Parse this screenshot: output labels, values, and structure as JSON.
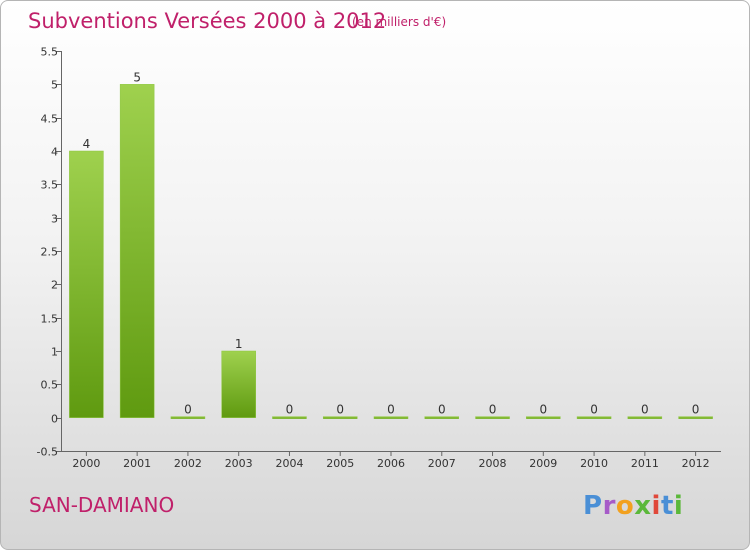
{
  "header": {
    "title": "Subventions Versées 2000 à 2012",
    "unit": "(en milliers d'€)"
  },
  "footer": {
    "commune": "SAN-DAMIANO",
    "logo_text": "Proxiti"
  },
  "colors": {
    "title": "#c0206a",
    "bar_top": "#9fd14e",
    "bar_bottom": "#5f9a10",
    "logo": [
      "#4a8fd6",
      "#f2a11f",
      "#5bb83a",
      "#e0483a",
      "#a65bc8"
    ]
  },
  "chart_data": {
    "type": "bar",
    "title": "Subventions Versées 2000 à 2012",
    "subtitle": "(en milliers d'€)",
    "xlabel": "",
    "ylabel": "",
    "categories": [
      "2000",
      "2001",
      "2002",
      "2003",
      "2004",
      "2005",
      "2006",
      "2007",
      "2008",
      "2009",
      "2010",
      "2011",
      "2012"
    ],
    "values": [
      4,
      5,
      0,
      1,
      0,
      0,
      0,
      0,
      0,
      0,
      0,
      0,
      0
    ],
    "value_labels": [
      "4",
      "5",
      "0",
      "1",
      "0",
      "0",
      "0",
      "0",
      "0",
      "0",
      "0",
      "0",
      "0"
    ],
    "ylim": [
      -0.5,
      5.5
    ],
    "yticks": [
      -0.5,
      0,
      0.5,
      1,
      1.5,
      2,
      2.5,
      3,
      3.5,
      4,
      4.5,
      5,
      5.5
    ],
    "ytick_labels": [
      "-0.5",
      "0",
      "0.5",
      "1",
      "1.5",
      "2",
      "2.5",
      "3",
      "3.5",
      "4",
      "4.5",
      "5",
      "5.5"
    ],
    "grid": false,
    "legend": "none"
  }
}
